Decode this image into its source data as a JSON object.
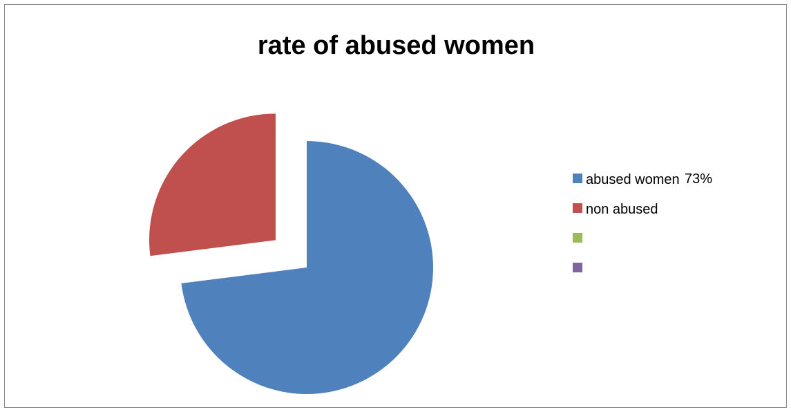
{
  "chart_data": {
    "type": "pie",
    "title": "rate of abused women",
    "slices": [
      {
        "label": "abused women",
        "value": 73,
        "color": "#4f81bd",
        "exploded": false
      },
      {
        "label": "non abused",
        "value": 27,
        "color": "#c0504d",
        "exploded": true
      }
    ],
    "legend": {
      "placement": "right",
      "entries": [
        {
          "label": "abused women",
          "value_text": "73%",
          "color": "#4f81bd"
        },
        {
          "label": "non abused",
          "value_text": "",
          "color": "#c0504d"
        },
        {
          "label": "",
          "value_text": "",
          "color": "#9bbb59"
        },
        {
          "label": "",
          "value_text": "",
          "color": "#8064a2"
        }
      ]
    }
  }
}
